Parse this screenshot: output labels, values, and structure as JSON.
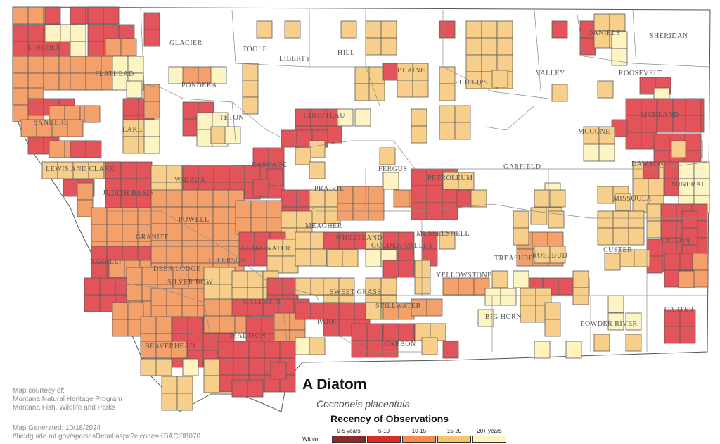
{
  "title": "A Diatom",
  "scientific_name": "Cocconeis placentula",
  "credits": {
    "line1": "Map courtesy of:",
    "line2": "Montana Natural Heritage Program",
    "line3": "Montana Fish, Wildlife and Parks",
    "generated": "Map Generated: 10/18/2024",
    "url": "//fieldguide.mt.gov/speciesDetail.aspx?elcode=KBACI0B070"
  },
  "legend": {
    "title": "Recency of Observations",
    "within_label": "Within",
    "classes": [
      {
        "label": "0-5 years",
        "color": "#8b2a2a"
      },
      {
        "label": "5-10",
        "color": "#dd2a2a"
      },
      {
        "label": "10-15",
        "color": "#f58a4a"
      },
      {
        "label": "15-20",
        "color": "#f7c46e"
      },
      {
        "label": "20+ years",
        "color": "#fdf4bf"
      }
    ]
  },
  "colors": {
    "c5_10": "#e2545a",
    "c10_15": "#f3a06a",
    "c15_20": "#f7cf8a",
    "c20plus": "#fdf4c2",
    "border": "#555555"
  },
  "county_labels": [
    "GLACIER",
    "TOOLE",
    "LIBERTY",
    "HILL",
    "BLAINE",
    "PHILLIPS",
    "VALLEY",
    "DANIELS",
    "SHERIDAN",
    "ROOSEVELT",
    "LINCOLN",
    "FLATHEAD",
    "PONDERA",
    "TETON",
    "CHOUTEAU",
    "RICHLAND",
    "MCCONE",
    "SANDERS",
    "LAKE",
    "CASCADE",
    "FERGUS",
    "PETROLEUM",
    "GARFIELD",
    "DAWSON",
    "MINERAL",
    "MISSOULA",
    "LEWIS AND CLARK",
    "JUDITH BASIN",
    "WIBAUX",
    "PRAIRIE",
    "POWELL",
    "MEAGHER",
    "WHEATLAND",
    "GOLDEN VALLEY",
    "MUSSELSHELL",
    "FALLON",
    "GRANITE",
    "BROADWATER",
    "ROSEBUD",
    "TREASURE",
    "CUSTER",
    "RAVALLI",
    "DEER LODGE",
    "JEFFERSON",
    "SILVER BOW",
    "YELLOWSTONE",
    "SWEET GRASS",
    "STILLWATER",
    "GALLATIN",
    "PARK",
    "BIG HORN",
    "POWDER RIVER",
    "CARTER",
    "MADISON",
    "BEAVERHEAD",
    "CARBON"
  ]
}
